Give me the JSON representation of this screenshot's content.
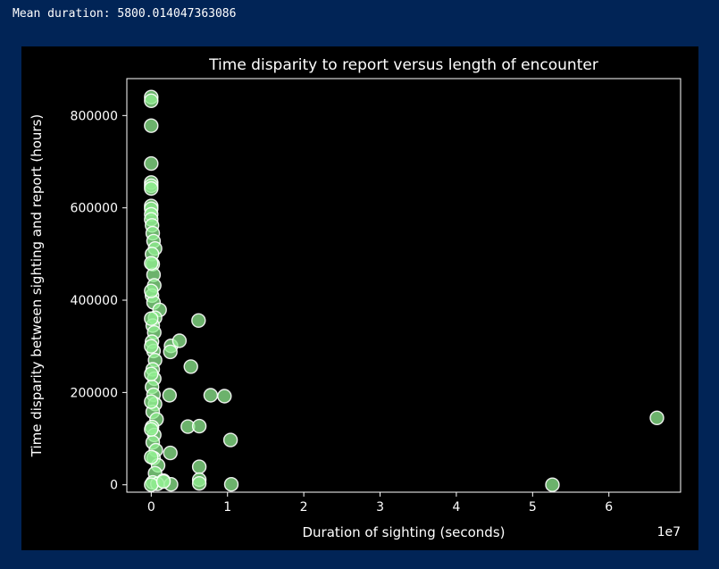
{
  "console": {
    "output_line": "Mean duration: 5800.014047363086"
  },
  "chart_data": {
    "type": "scatter",
    "title": "Time disparity to report versus length of encounter",
    "xlabel": "Duration of sighting (seconds)",
    "ylabel": "Time disparity between sighting and report (hours)",
    "x_offset_label": "1e7",
    "x_scale": 10000000,
    "xlim": [
      -0.32,
      6.94
    ],
    "ylim": [
      -16000,
      880000
    ],
    "x_ticks": [
      0,
      1,
      2,
      3,
      4,
      5,
      6
    ],
    "x_tick_labels": [
      "0",
      "1",
      "2",
      "3",
      "4",
      "5",
      "6"
    ],
    "y_ticks": [
      0,
      200000,
      400000,
      600000,
      800000
    ],
    "y_tick_labels": [
      "0",
      "200000",
      "400000",
      "600000",
      "800000"
    ],
    "grid": false,
    "legend": "none",
    "colors": {
      "marker_fill": "#90ee90",
      "marker_edge": "#ffffff",
      "axes_bg": "#000000",
      "axes_edge": "#ffffff",
      "page_bg": "#012456"
    },
    "x_units_note": "x values below are in units of 1e7 seconds",
    "points": [
      [
        0.0,
        840000
      ],
      [
        0.0,
        832000
      ],
      [
        0.0,
        778000
      ],
      [
        0.0,
        696000
      ],
      [
        0.0,
        655000
      ],
      [
        0.0,
        648000
      ],
      [
        0.0,
        642000
      ],
      [
        0.0,
        604000
      ],
      [
        0.0,
        598000
      ],
      [
        0.0,
        586000
      ],
      [
        0.0,
        575000
      ],
      [
        0.01,
        562000
      ],
      [
        0.02,
        545000
      ],
      [
        0.03,
        528000
      ],
      [
        0.05,
        512000
      ],
      [
        0.01,
        500000
      ],
      [
        0.02,
        478000
      ],
      [
        0.03,
        455000
      ],
      [
        0.04,
        432000
      ],
      [
        0.01,
        410000
      ],
      [
        0.03,
        395000
      ],
      [
        0.11,
        379000
      ],
      [
        0.05,
        362000
      ],
      [
        0.02,
        345000
      ],
      [
        0.04,
        330000
      ],
      [
        0.01,
        310000
      ],
      [
        0.03,
        290000
      ],
      [
        0.05,
        270000
      ],
      [
        0.02,
        250000
      ],
      [
        0.04,
        230000
      ],
      [
        0.01,
        212000
      ],
      [
        0.03,
        195000
      ],
      [
        0.05,
        175000
      ],
      [
        0.02,
        158000
      ],
      [
        0.07,
        142000
      ],
      [
        0.01,
        125000
      ],
      [
        0.04,
        108000
      ],
      [
        0.02,
        92000
      ],
      [
        0.06,
        75000
      ],
      [
        0.03,
        58000
      ],
      [
        0.09,
        42000
      ],
      [
        0.05,
        25000
      ],
      [
        0.16,
        9000
      ],
      [
        0.02,
        5000
      ],
      [
        0.08,
        2000
      ],
      [
        0.0,
        480000
      ],
      [
        0.0,
        420000
      ],
      [
        0.0,
        360000
      ],
      [
        0.0,
        300000
      ],
      [
        0.0,
        240000
      ],
      [
        0.0,
        180000
      ],
      [
        0.0,
        120000
      ],
      [
        0.0,
        60000
      ],
      [
        0.0,
        0
      ],
      [
        0.26,
        301000
      ],
      [
        0.25,
        288000
      ],
      [
        0.37,
        312000
      ],
      [
        0.62,
        356000
      ],
      [
        0.52,
        256000
      ],
      [
        0.24,
        194000
      ],
      [
        0.78,
        194000
      ],
      [
        0.96,
        192000
      ],
      [
        0.48,
        126000
      ],
      [
        0.63,
        127000
      ],
      [
        1.04,
        97000
      ],
      [
        0.25,
        69000
      ],
      [
        0.63,
        39000
      ],
      [
        0.63,
        11000
      ],
      [
        0.63,
        3000
      ],
      [
        0.26,
        1000
      ],
      [
        0.16,
        7000
      ],
      [
        1.05,
        1000
      ],
      [
        5.26,
        0
      ],
      [
        6.63,
        145000
      ]
    ]
  }
}
